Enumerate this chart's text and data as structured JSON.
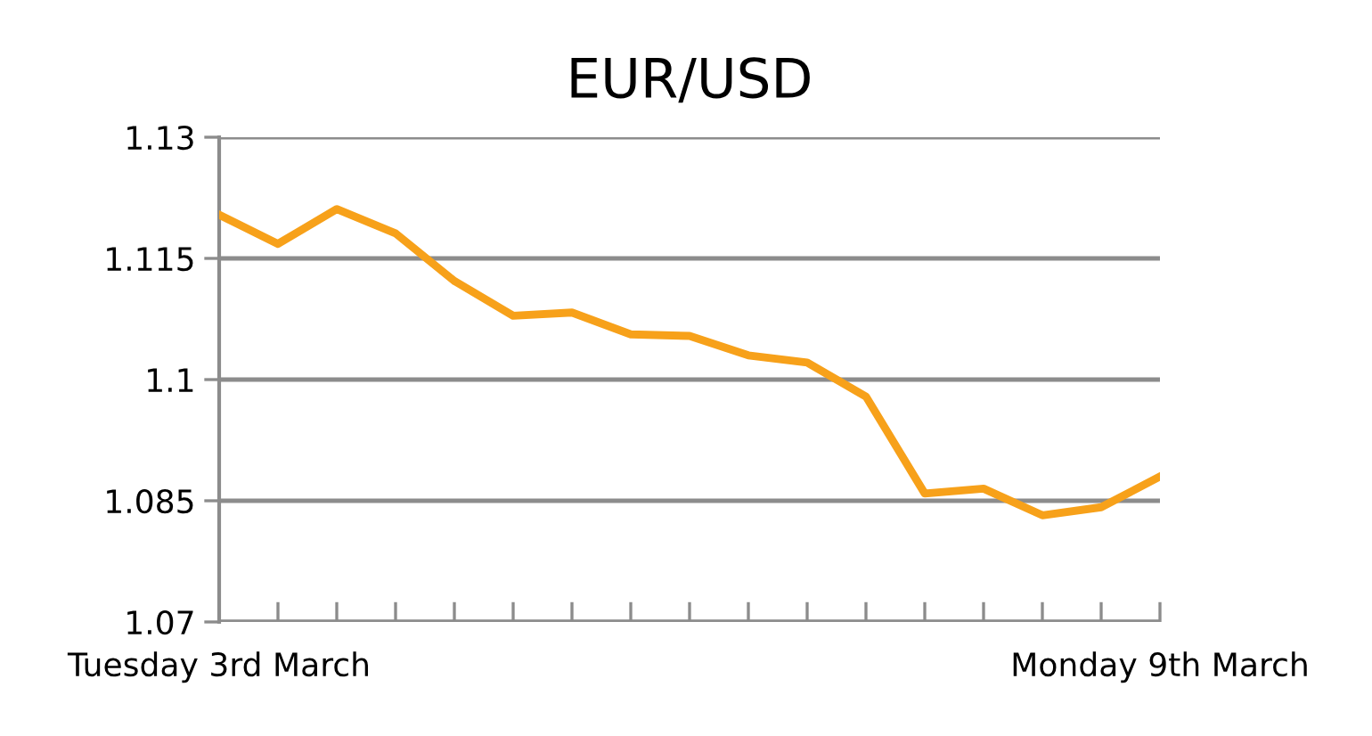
{
  "chart_data": {
    "type": "line",
    "title": "EUR/USD",
    "categories": [
      "Tuesday 3rd March",
      null,
      null,
      null,
      null,
      null,
      null,
      null,
      null,
      null,
      null,
      null,
      null,
      null,
      null,
      null,
      "Monday 9th March"
    ],
    "series": [
      {
        "color": "#f7a11a",
        "values": [
          1.1204,
          1.1168,
          1.1211,
          1.1181,
          1.1122,
          1.1079,
          1.1083,
          1.1056,
          1.1054,
          1.103,
          1.1021,
          1.0979,
          1.0859,
          1.0865,
          1.0832,
          1.0842,
          1.088
        ]
      }
    ],
    "ylim": [
      1.07,
      1.13
    ],
    "yticks": [
      1.07,
      1.085,
      1.1,
      1.115,
      1.13
    ],
    "grid": "y",
    "marker": "none",
    "line_style": "solid"
  }
}
